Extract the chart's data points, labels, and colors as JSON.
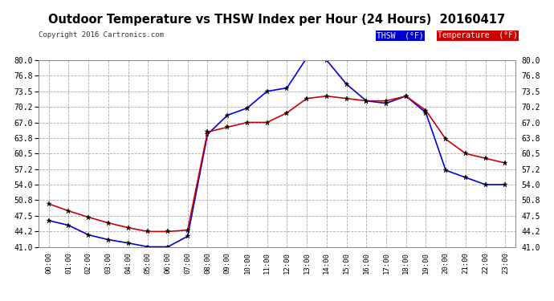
{
  "title": "Outdoor Temperature vs THSW Index per Hour (24 Hours)  20160417",
  "copyright": "Copyright 2016 Cartronics.com",
  "background_color": "#ffffff",
  "plot_bg_color": "#ffffff",
  "grid_color": "#aaaaaa",
  "hours": [
    "00:00",
    "01:00",
    "02:00",
    "03:00",
    "04:00",
    "05:00",
    "06:00",
    "07:00",
    "08:00",
    "09:00",
    "10:00",
    "11:00",
    "12:00",
    "13:00",
    "14:00",
    "15:00",
    "16:00",
    "17:00",
    "18:00",
    "19:00",
    "20:00",
    "21:00",
    "22:00",
    "23:00"
  ],
  "thsw": [
    46.5,
    45.5,
    43.5,
    42.5,
    41.8,
    41.0,
    41.0,
    43.2,
    64.5,
    68.5,
    70.0,
    73.5,
    74.2,
    80.5,
    80.0,
    75.0,
    71.5,
    71.0,
    72.5,
    69.0,
    57.0,
    55.5,
    54.0,
    54.0
  ],
  "temperature": [
    50.0,
    48.5,
    47.2,
    46.0,
    45.0,
    44.2,
    44.2,
    44.5,
    65.0,
    66.0,
    67.0,
    67.0,
    69.0,
    72.0,
    72.5,
    72.0,
    71.5,
    71.5,
    72.5,
    69.5,
    63.5,
    60.5,
    59.5,
    58.5
  ],
  "thsw_color": "#0000dd",
  "temp_color": "#cc0000",
  "ylim": [
    41.0,
    80.0
  ],
  "yticks": [
    41.0,
    44.2,
    47.5,
    50.8,
    54.0,
    57.2,
    60.5,
    63.8,
    67.0,
    70.2,
    73.5,
    76.8,
    80.0
  ],
  "legend_thsw_bg": "#0000cc",
  "legend_temp_bg": "#cc0000",
  "legend_thsw_label": "THSW  (°F)",
  "legend_temp_label": "Temperature  (°F)"
}
